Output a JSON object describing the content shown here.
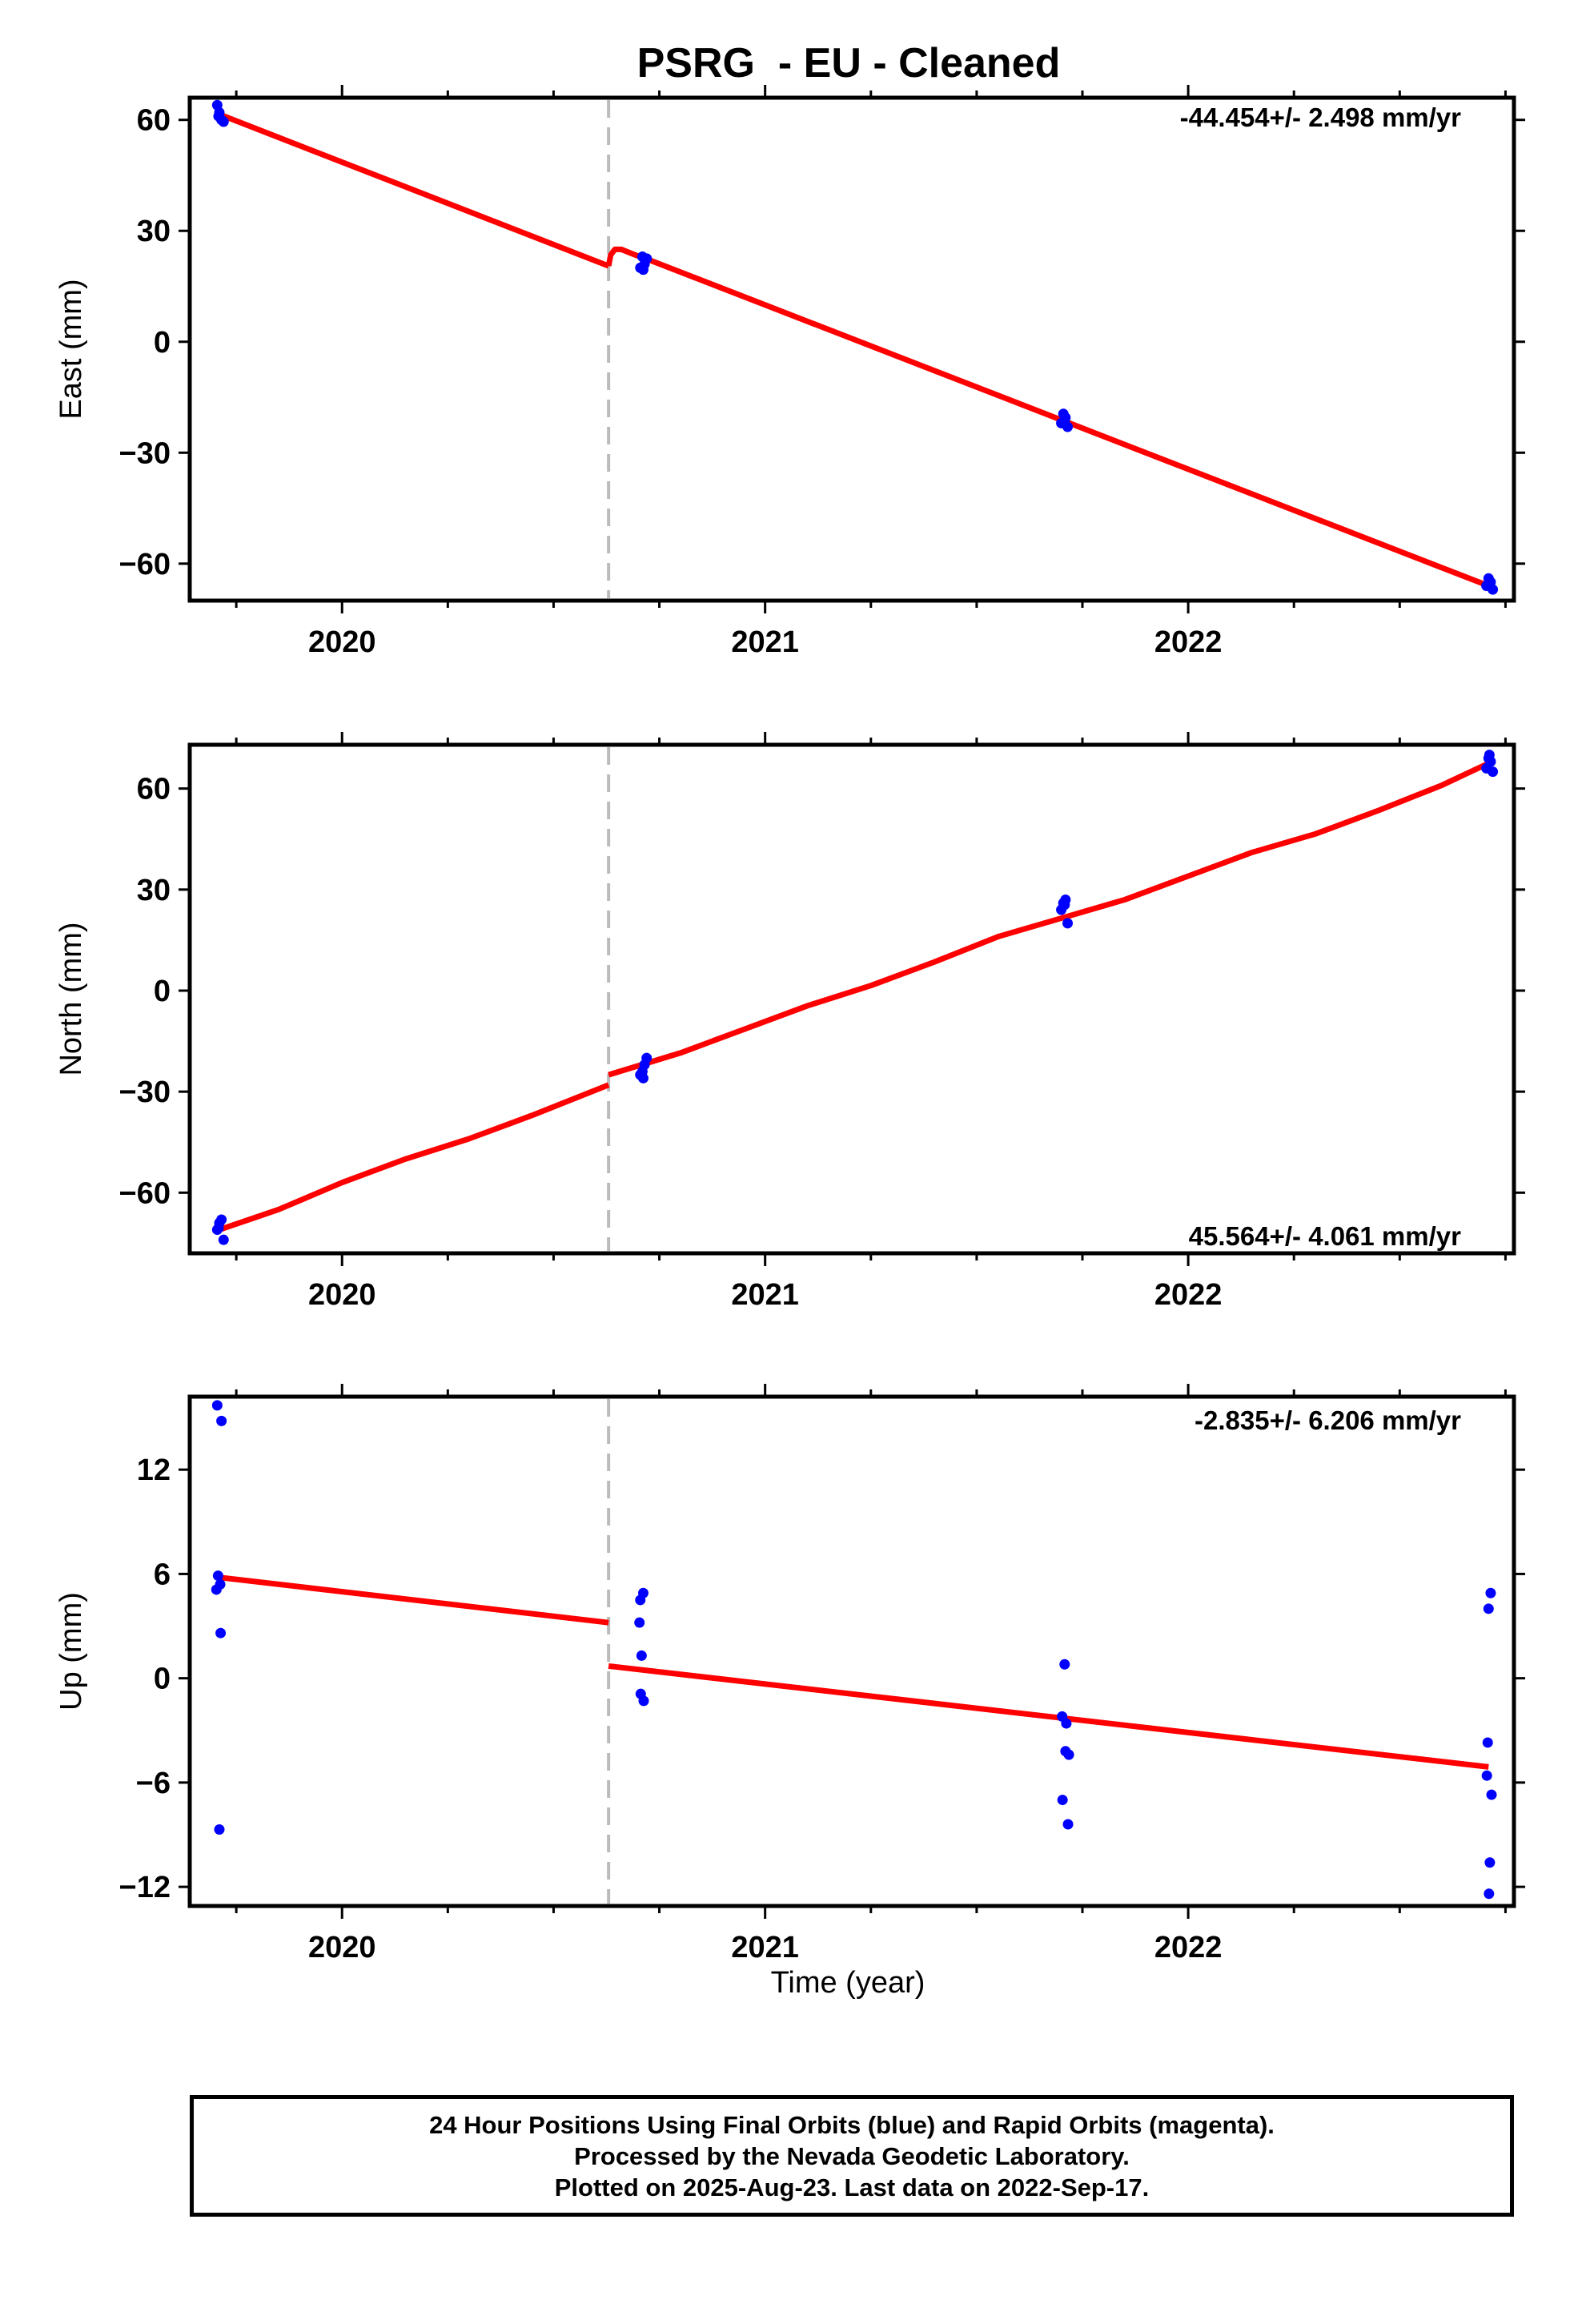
{
  "title": "PSRG  - EU - Cleaned",
  "xlabel": "Time (year)",
  "colors": {
    "fit": "#ff0000",
    "points": "#0000ff",
    "offset_line": "#bbbbbb",
    "axes": "#000000"
  },
  "caption": {
    "line1": "24 Hour Positions Using Final Orbits (blue) and Rapid Orbits (magenta).",
    "line2": "Processed by the Nevada Geodetic Laboratory.",
    "line3": "Plotted on 2025-Aug-23. Last data on 2022-Sep-17."
  },
  "chart_data": [
    {
      "type": "scatter",
      "name": "East",
      "ylabel": "East (mm)",
      "rate_text": "-44.454+/- 2.498 mm/yr",
      "xlim": [
        2019.64,
        2022.77
      ],
      "ylim": [
        -70,
        66
      ],
      "yticks": [
        60,
        30,
        0,
        -30,
        -60
      ],
      "xticks": [
        2020,
        2021,
        2022
      ],
      "offset_epoch": 2020.63,
      "points": [
        [
          2019.705,
          64
        ],
        [
          2019.71,
          62
        ],
        [
          2019.715,
          60
        ],
        [
          2019.72,
          59.5
        ],
        [
          2019.708,
          61
        ],
        [
          2020.71,
          23
        ],
        [
          2020.715,
          21
        ],
        [
          2020.705,
          20
        ],
        [
          2020.72,
          22.5
        ],
        [
          2020.712,
          19.5
        ],
        [
          2021.705,
          -19.5
        ],
        [
          2021.71,
          -20.5
        ],
        [
          2021.7,
          -22
        ],
        [
          2021.715,
          -23
        ],
        [
          2021.708,
          -21.5
        ],
        [
          2022.71,
          -64
        ],
        [
          2022.715,
          -65
        ],
        [
          2022.705,
          -66
        ],
        [
          2022.72,
          -67
        ],
        [
          2022.712,
          -65.5
        ]
      ],
      "fit_segments": [
        [
          [
            2019.71,
            61.5
          ],
          [
            2020.63,
            20.5
          ]
        ],
        [
          [
            2020.63,
            20.5
          ],
          [
            2020.635,
            23.5
          ],
          [
            2020.645,
            25
          ],
          [
            2020.66,
            25
          ],
          [
            2020.69,
            23.6
          ],
          [
            2020.72,
            22.4
          ],
          [
            2022.71,
            -66
          ]
        ]
      ]
    },
    {
      "type": "scatter",
      "name": "North",
      "ylabel": "North (mm)",
      "rate_text": "45.564+/- 4.061 mm/yr",
      "xlim": [
        2019.64,
        2022.77
      ],
      "ylim": [
        -78,
        73
      ],
      "yticks": [
        60,
        30,
        0,
        -30,
        -60
      ],
      "xticks": [
        2020,
        2021,
        2022
      ],
      "offset_epoch": 2020.63,
      "points": [
        [
          2019.705,
          -71
        ],
        [
          2019.71,
          -69
        ],
        [
          2019.715,
          -68
        ],
        [
          2019.72,
          -74
        ],
        [
          2019.708,
          -70.5
        ],
        [
          2020.705,
          -25
        ],
        [
          2020.71,
          -24
        ],
        [
          2020.715,
          -22
        ],
        [
          2020.72,
          -20
        ],
        [
          2020.712,
          -26
        ],
        [
          2021.705,
          26
        ],
        [
          2021.71,
          27
        ],
        [
          2021.7,
          24
        ],
        [
          2021.715,
          20
        ],
        [
          2021.708,
          25.5
        ],
        [
          2022.705,
          66
        ],
        [
          2022.71,
          69
        ],
        [
          2022.715,
          68
        ],
        [
          2022.72,
          65
        ],
        [
          2022.712,
          70
        ]
      ],
      "fit_segments": [
        [
          [
            2019.71,
            -71
          ],
          [
            2019.85,
            -65
          ],
          [
            2020.0,
            -57
          ],
          [
            2020.15,
            -50
          ],
          [
            2020.3,
            -44
          ],
          [
            2020.45,
            -37
          ],
          [
            2020.63,
            -28
          ]
        ],
        [
          [
            2020.63,
            -25
          ],
          [
            2020.8,
            -18.5
          ],
          [
            2020.95,
            -11.5
          ],
          [
            2021.1,
            -4.5
          ],
          [
            2021.25,
            1.5
          ],
          [
            2021.4,
            8.5
          ],
          [
            2021.55,
            16
          ],
          [
            2021.7,
            21.5
          ],
          [
            2021.85,
            27
          ],
          [
            2022.0,
            34
          ],
          [
            2022.15,
            41
          ],
          [
            2022.3,
            46.5
          ],
          [
            2022.45,
            53.5
          ],
          [
            2022.6,
            61
          ],
          [
            2022.71,
            67.5
          ]
        ]
      ]
    },
    {
      "type": "scatter",
      "name": "Up",
      "ylabel": "Up (mm)",
      "rate_text": "-2.835+/- 6.206 mm/yr",
      "xlim": [
        2019.64,
        2022.77
      ],
      "ylim": [
        -13.1,
        16.2
      ],
      "yticks": [
        12,
        6,
        0,
        -6,
        -12
      ],
      "xticks": [
        2020,
        2021,
        2022
      ],
      "offset_epoch": 2020.63,
      "points": [
        [
          2019.705,
          15.7
        ],
        [
          2019.715,
          14.8
        ],
        [
          2019.707,
          5.9
        ],
        [
          2019.703,
          5.1
        ],
        [
          2019.712,
          5.4
        ],
        [
          2019.713,
          2.6
        ],
        [
          2019.71,
          -8.7
        ],
        [
          2020.705,
          4.5
        ],
        [
          2020.712,
          4.9
        ],
        [
          2020.703,
          3.2
        ],
        [
          2020.708,
          1.3
        ],
        [
          2020.706,
          -0.9
        ],
        [
          2020.713,
          -1.3
        ],
        [
          2021.708,
          0.8
        ],
        [
          2021.702,
          -2.2
        ],
        [
          2021.712,
          -2.6
        ],
        [
          2021.71,
          -4.2
        ],
        [
          2021.718,
          -4.4
        ],
        [
          2021.703,
          -7.0
        ],
        [
          2021.716,
          -8.4
        ],
        [
          2022.715,
          4.9
        ],
        [
          2022.71,
          4.0
        ],
        [
          2022.708,
          -3.7
        ],
        [
          2022.706,
          -5.6
        ],
        [
          2022.717,
          -6.7
        ],
        [
          2022.713,
          -10.6
        ],
        [
          2022.711,
          -12.4
        ]
      ],
      "fit_segments": [
        [
          [
            2019.71,
            5.8
          ],
          [
            2020.63,
            3.2
          ]
        ],
        [
          [
            2020.63,
            0.7
          ],
          [
            2022.71,
            -5.1
          ]
        ]
      ]
    }
  ]
}
